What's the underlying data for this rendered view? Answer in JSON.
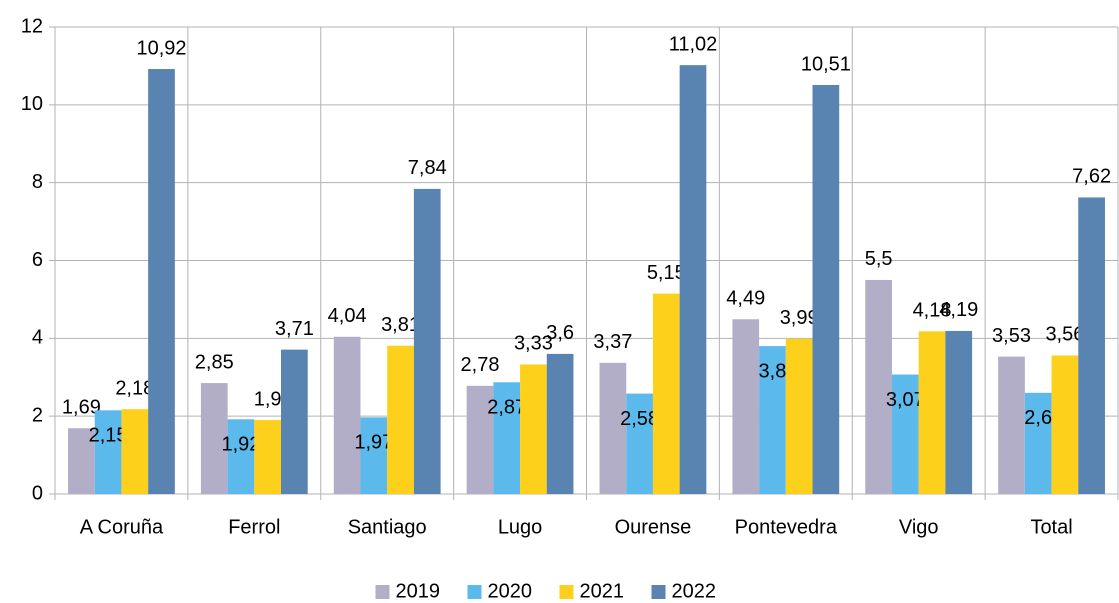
{
  "chart_data": {
    "type": "bar",
    "categories": [
      "A Coruña",
      "Ferrol",
      "Santiago",
      "Lugo",
      "Ourense",
      "Pontevedra",
      "Vigo",
      "Total"
    ],
    "series": [
      {
        "name": "2019",
        "color": "#b3aec8",
        "values": [
          1.69,
          2.85,
          4.04,
          2.78,
          3.37,
          4.49,
          5.5,
          3.53
        ],
        "value_labels": [
          "1,69",
          "2,85",
          "4,04",
          "2,78",
          "3,37",
          "4,49",
          "5,5",
          "3,53"
        ]
      },
      {
        "name": "2020",
        "color": "#5cb9ec",
        "values": [
          2.15,
          1.92,
          1.97,
          2.87,
          2.58,
          3.8,
          3.07,
          2.6
        ],
        "value_labels": [
          "2,15",
          "1,92",
          "1,97",
          "2,87",
          "2,58",
          "3,8",
          "3,07",
          "2,6"
        ]
      },
      {
        "name": "2021",
        "color": "#fdd11b",
        "values": [
          2.18,
          1.9,
          3.81,
          3.33,
          5.15,
          3.99,
          4.18,
          3.56
        ],
        "value_labels": [
          "2,18",
          "1,9",
          "3,81",
          "3,33",
          "5,15",
          "3,99",
          "4,18",
          "3,56"
        ]
      },
      {
        "name": "2022",
        "color": "#5983b0",
        "values": [
          10.92,
          3.71,
          7.84,
          3.6,
          11.02,
          10.51,
          4.19,
          7.62
        ],
        "value_labels": [
          "10,92",
          "3,71",
          "7,84",
          "3,6",
          "11,02",
          "10,51",
          "4,19",
          "7,62"
        ]
      }
    ],
    "ylim": [
      0,
      12
    ],
    "yticks": [
      0,
      2,
      4,
      6,
      8,
      10,
      12
    ],
    "grid": true,
    "legend": "bottom"
  }
}
